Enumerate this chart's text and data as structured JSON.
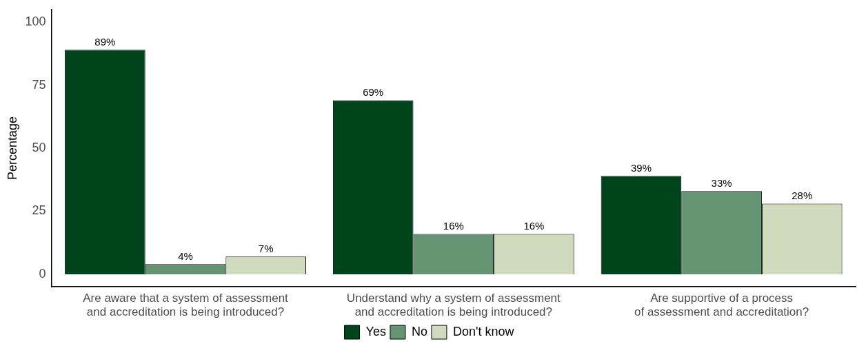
{
  "chart_data": {
    "type": "bar",
    "ylabel": "Percentage",
    "categories": [
      "Are aware that a system of assessment\nand accreditation is being introduced?",
      "Understand why a system of assessment\nand accreditation is being introduced?",
      "Are supportive of a process\nof assessment and accreditation?"
    ],
    "series": [
      {
        "name": "Yes",
        "color": "#00441b",
        "values": [
          89,
          69,
          39
        ],
        "value_labels": [
          "89%",
          "69%",
          "39%"
        ]
      },
      {
        "name": "No",
        "color": "#659473",
        "values": [
          4,
          16,
          33
        ],
        "value_labels": [
          "4%",
          "16%",
          "33%"
        ]
      },
      {
        "name": "Don't know",
        "color": "#d0dabd",
        "values": [
          7,
          16,
          28
        ],
        "value_labels": [
          "7%",
          "16%",
          "28%"
        ]
      }
    ],
    "ylim": [
      -5,
      105
    ],
    "yticks": [
      0,
      25,
      50,
      75,
      100
    ],
    "grid": false,
    "legend": "bottom"
  }
}
